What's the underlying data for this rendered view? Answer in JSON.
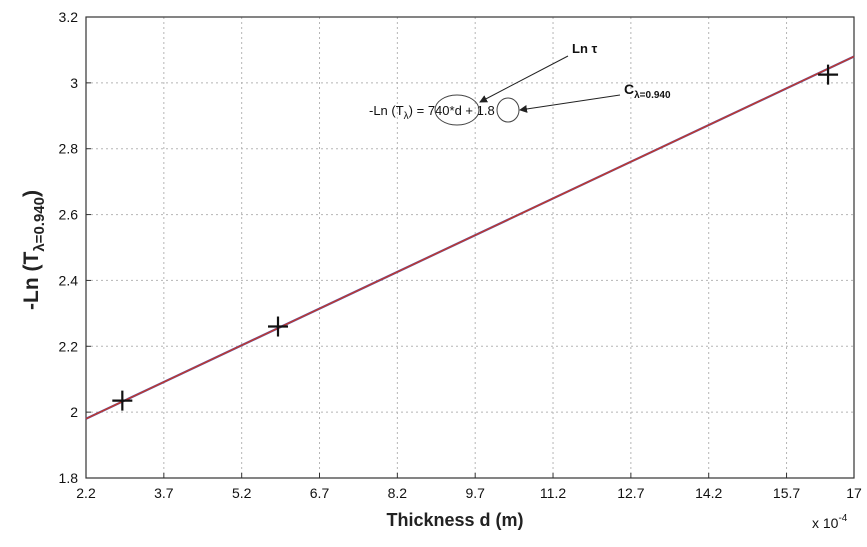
{
  "chart_data": {
    "type": "line",
    "title": "",
    "xlabel": "Thickness d (m)",
    "x_multiplier": "x 10",
    "x_multiplier_exp": "-4",
    "ylabel_prefix": "-Ln (T",
    "ylabel_sub": "λ=0.940",
    "ylabel_suffix": ")",
    "xlim": [
      2.2,
      17
    ],
    "ylim": [
      1.8,
      3.2
    ],
    "x_ticks": [
      "2.2",
      "3.7",
      "5.2",
      "6.7",
      "8.2",
      "9.7",
      "11.2",
      "12.7",
      "14.2",
      "15.7",
      "17"
    ],
    "y_ticks": [
      "1.8",
      "2",
      "2.2",
      "2.4",
      "2.6",
      "2.8",
      "3",
      "3.2"
    ],
    "grid": true,
    "series": [
      {
        "kind": "measured",
        "marker": "+",
        "points": [
          {
            "x": 2.9,
            "y": 2.035
          },
          {
            "x": 5.9,
            "y": 2.26
          },
          {
            "x": 16.5,
            "y": 3.025
          }
        ]
      },
      {
        "kind": "fit",
        "line_color": "#c0392b",
        "points": [
          {
            "x": 2.2,
            "y": 1.98
          },
          {
            "x": 17,
            "y": 3.08
          }
        ]
      }
    ],
    "annotations": {
      "equation_prefix": "-Ln (T",
      "equation_sub": "λ",
      "equation_mid": ") = ",
      "slope_term": "740*d",
      "plus": " + ",
      "intercept_term": "1.8",
      "label_ln_tau": "Ln τ",
      "label_c_main": "C",
      "label_c_sub": "λ=0.940"
    }
  }
}
